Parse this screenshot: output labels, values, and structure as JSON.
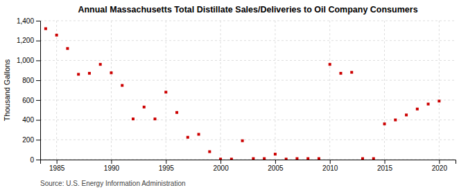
{
  "chart_data": {
    "type": "scatter",
    "title": "Annual Massachusetts Total Distillate Sales/Deliveries to Oil Company Consumers",
    "ylabel": "Thousand Gallons",
    "source": "Source: U.S. Energy Information Administration",
    "x": [
      1984,
      1985,
      1986,
      1987,
      1988,
      1989,
      1990,
      1991,
      1992,
      1993,
      1994,
      1995,
      1996,
      1997,
      1998,
      1999,
      2000,
      2001,
      2002,
      2003,
      2004,
      2005,
      2006,
      2007,
      2008,
      2009,
      2010,
      2011,
      2012,
      2013,
      2014,
      2015,
      2016,
      2017,
      2018,
      2019,
      2020
    ],
    "values": [
      1320,
      1255,
      1120,
      860,
      870,
      960,
      875,
      748,
      410,
      530,
      410,
      680,
      475,
      225,
      255,
      80,
      5,
      5,
      190,
      10,
      10,
      55,
      5,
      10,
      10,
      10,
      960,
      870,
      880,
      10,
      10,
      360,
      400,
      450,
      510,
      560,
      590
    ],
    "color": "#cc0000",
    "marker": "square",
    "xlim": [
      1983.5,
      2021.5
    ],
    "xticks": [
      1985,
      1990,
      1995,
      2000,
      2005,
      2010,
      2015,
      2020
    ],
    "ylim": [
      0,
      1400
    ],
    "yticks": [
      0,
      200,
      400,
      600,
      800,
      {
        "value": 1000,
        "label": "1,000"
      },
      {
        "value": 1200,
        "label": "1,200"
      },
      {
        "value": 1400,
        "label": "1,400"
      }
    ],
    "grid": true
  }
}
